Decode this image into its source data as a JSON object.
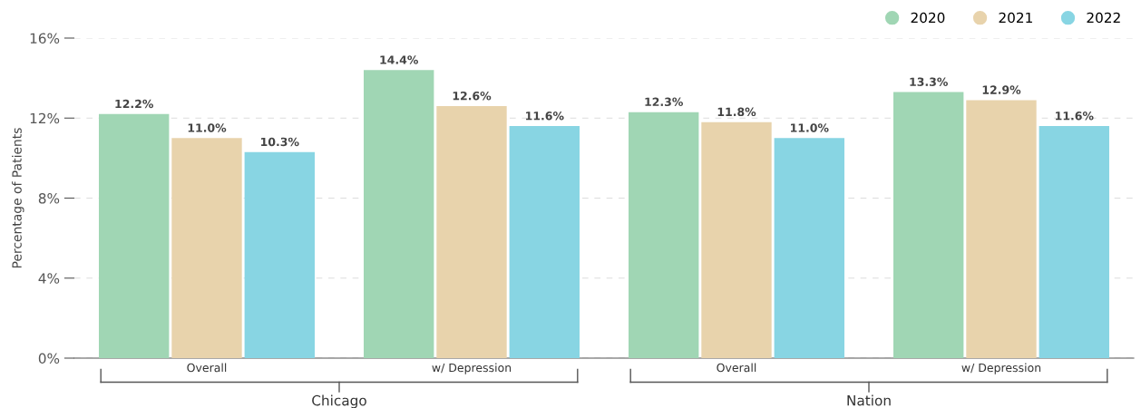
{
  "chart_data": {
    "type": "bar",
    "ylabel": "Percentage of Patients",
    "categories": [
      "Overall",
      "w/ Depression",
      "Overall",
      "w/ Depression"
    ],
    "series": [
      {
        "name": "2020",
        "color": "#a0d6b4",
        "values": [
          12.2,
          14.4,
          12.3,
          13.3
        ],
        "value_labels": [
          "12.2%",
          "14.4%",
          "12.3%",
          "13.3%"
        ]
      },
      {
        "name": "2021",
        "color": "#e8d3ac",
        "values": [
          11.0,
          12.6,
          11.8,
          12.9
        ],
        "value_labels": [
          "11.0%",
          "12.6%",
          "11.8%",
          "12.9%"
        ]
      },
      {
        "name": "2022",
        "color": "#88d5e3",
        "values": [
          10.3,
          11.6,
          11.0,
          11.6
        ],
        "value_labels": [
          "10.3%",
          "11.6%",
          "11.0%",
          "11.6%"
        ]
      }
    ],
    "ylim": [
      0,
      16
    ],
    "yticks": [
      {
        "value": 0,
        "label": "0%"
      },
      {
        "value": 4,
        "label": "4%"
      },
      {
        "value": 8,
        "label": "8%"
      },
      {
        "value": 12,
        "label": "12%"
      },
      {
        "value": 16,
        "label": "16%"
      }
    ],
    "grid": "y",
    "legend": "top right",
    "annotations": [
      "Chicago",
      "Nation"
    ]
  }
}
